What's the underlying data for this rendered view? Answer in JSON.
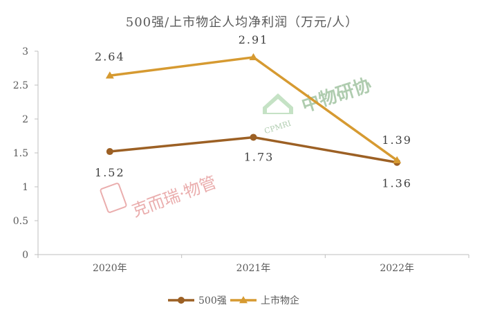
{
  "chart_data": {
    "type": "line",
    "title": "500强/上市物企人均净利润（万元/人）",
    "categories": [
      "2020年",
      "2021年",
      "2022年"
    ],
    "ylim": [
      0,
      3
    ],
    "yticks": [
      "0",
      "0.5",
      "1",
      "1.5",
      "2",
      "2.5",
      "3"
    ],
    "grid": false,
    "legend_position": "bottom",
    "series": [
      {
        "name": "500强",
        "values": [
          1.52,
          1.73,
          1.36
        ],
        "labels": [
          "1.52",
          "1.73",
          "1.36"
        ],
        "color": "#9c6024",
        "marker": "circle"
      },
      {
        "name": "上市物企",
        "values": [
          2.64,
          2.91,
          1.39
        ],
        "labels": [
          "2.64",
          "2.91",
          "1.39"
        ],
        "color": "#d69a31",
        "marker": "triangle"
      }
    ]
  },
  "watermarks": {
    "left_text": "克而瑞·物管",
    "right_text": "中物研协",
    "right_sub": "CPMRI"
  }
}
